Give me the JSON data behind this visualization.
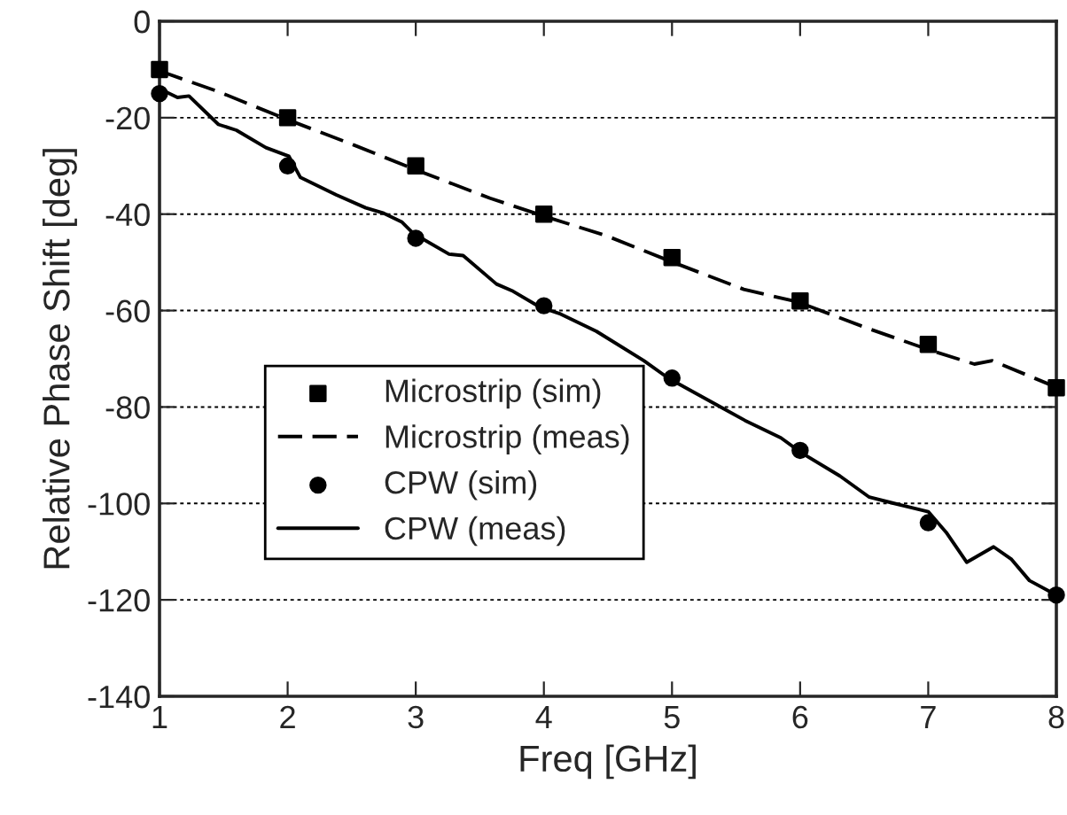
{
  "chart_data": {
    "type": "line",
    "xlabel": "Freq [GHz]",
    "ylabel": "Relative Phase Shift [deg]",
    "xlim": [
      1,
      8
    ],
    "xticks": [
      1,
      2,
      3,
      4,
      5,
      6,
      7,
      8
    ],
    "ylim": [
      -140,
      0
    ],
    "yticks": [
      -140,
      -120,
      -100,
      -80,
      -60,
      -40,
      -20,
      0
    ],
    "grid": "y",
    "legend": "lower left",
    "series": [
      {
        "name": "Microstrip (sim)",
        "type": "scatter",
        "marker": "square",
        "color": "#000000",
        "x": [
          1,
          2,
          3,
          4,
          5,
          6,
          7,
          8
        ],
        "values": [
          -10,
          -20,
          -30,
          -40,
          -49,
          -58,
          -67,
          -76
        ]
      },
      {
        "name": "Microstrip (meas)",
        "line_style": "dashed",
        "color": "#000000",
        "x": [
          1,
          1.46,
          1.97,
          2.52,
          2.98,
          3.58,
          4.0,
          4.5,
          4.97,
          5.56,
          5.98,
          6.53,
          6.99,
          7.36,
          7.5,
          8
        ],
        "values": [
          -10.3,
          -14.6,
          -20.1,
          -25.7,
          -30.6,
          -36.7,
          -40.4,
          -44.6,
          -49.6,
          -55.6,
          -58.2,
          -63.7,
          -68,
          -71.1,
          -70.4,
          -75.9
        ]
      },
      {
        "name": "CPW (sim)",
        "type": "scatter",
        "marker": "circle",
        "color": "#000000",
        "x": [
          1,
          2,
          3,
          4,
          5,
          6,
          7,
          8
        ],
        "values": [
          -15,
          -30,
          -45,
          -59,
          -74,
          -89,
          -104,
          -119
        ]
      },
      {
        "name": "CPW (meas)",
        "line_style": "solid",
        "color": "#000000",
        "x": [
          1,
          1.14,
          1.23,
          1.46,
          1.6,
          1.83,
          2.01,
          2.1,
          2.38,
          2.61,
          2.75,
          2.89,
          2.98,
          3.26,
          3.37,
          3.63,
          3.76,
          3.97,
          4.13,
          4.41,
          4.78,
          4.97,
          5.38,
          5.57,
          5.85,
          6.01,
          6.31,
          6.54,
          6.72,
          7.0,
          7.14,
          7.3,
          7.51,
          7.65,
          7.79,
          8.0
        ],
        "values": [
          -14,
          -15.8,
          -15.5,
          -21.4,
          -22.6,
          -26.2,
          -28,
          -32.4,
          -36,
          -38.7,
          -39.8,
          -41.6,
          -44,
          -48.3,
          -48.6,
          -54.5,
          -56,
          -59.3,
          -60.7,
          -64.3,
          -70.4,
          -74,
          -80,
          -82.8,
          -86.4,
          -89.5,
          -94.3,
          -98.7,
          -99.9,
          -101.7,
          -106,
          -112.2,
          -109,
          -111.6,
          -116,
          -119
        ]
      }
    ]
  }
}
